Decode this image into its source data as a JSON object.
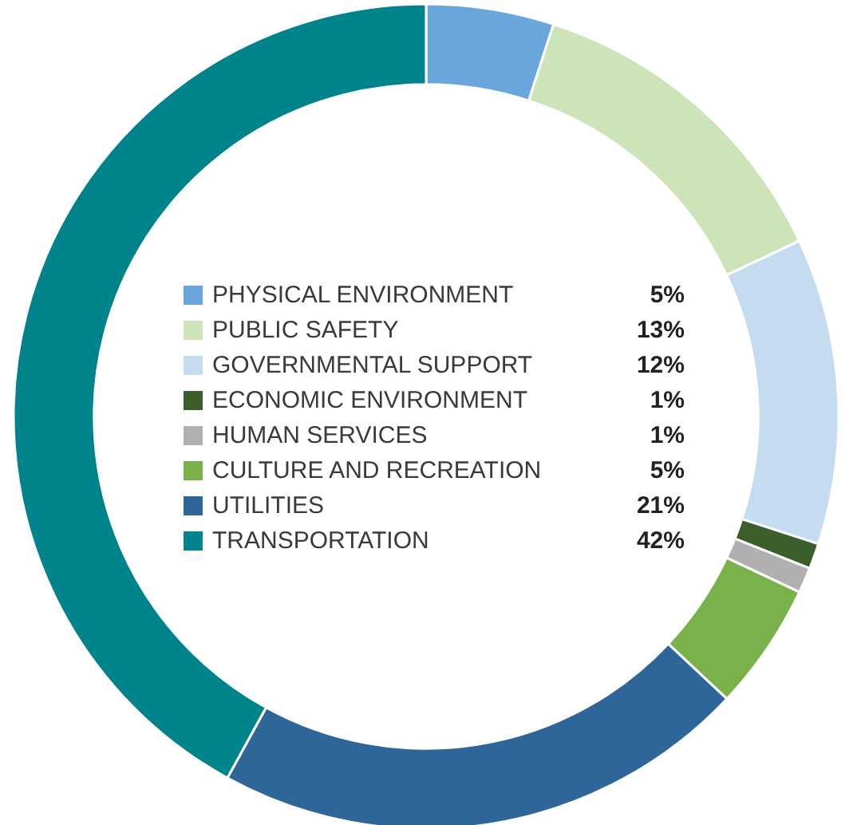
{
  "chart_data": {
    "type": "donut",
    "categories": [
      "PHYSICAL ENVIRONMENT",
      "PUBLIC SAFETY",
      "GOVERNMENTAL SUPPORT",
      "ECONOMIC ENVIRONMENT",
      "HUMAN SERVICES",
      "CULTURE AND RECREATION",
      "UTILITIES",
      "TRANSPORTATION"
    ],
    "values": [
      5,
      13,
      12,
      1,
      1,
      5,
      21,
      42
    ],
    "colors": [
      "#6aa6dc",
      "#cde4b8",
      "#c5dbf0",
      "#3c5e2a",
      "#b0b0b0",
      "#79b14a",
      "#2f6699",
      "#00848c"
    ],
    "value_labels": [
      "5%",
      "13%",
      "12%",
      "1%",
      "1%",
      "5%",
      "21%",
      "42%"
    ],
    "legend": "center"
  }
}
